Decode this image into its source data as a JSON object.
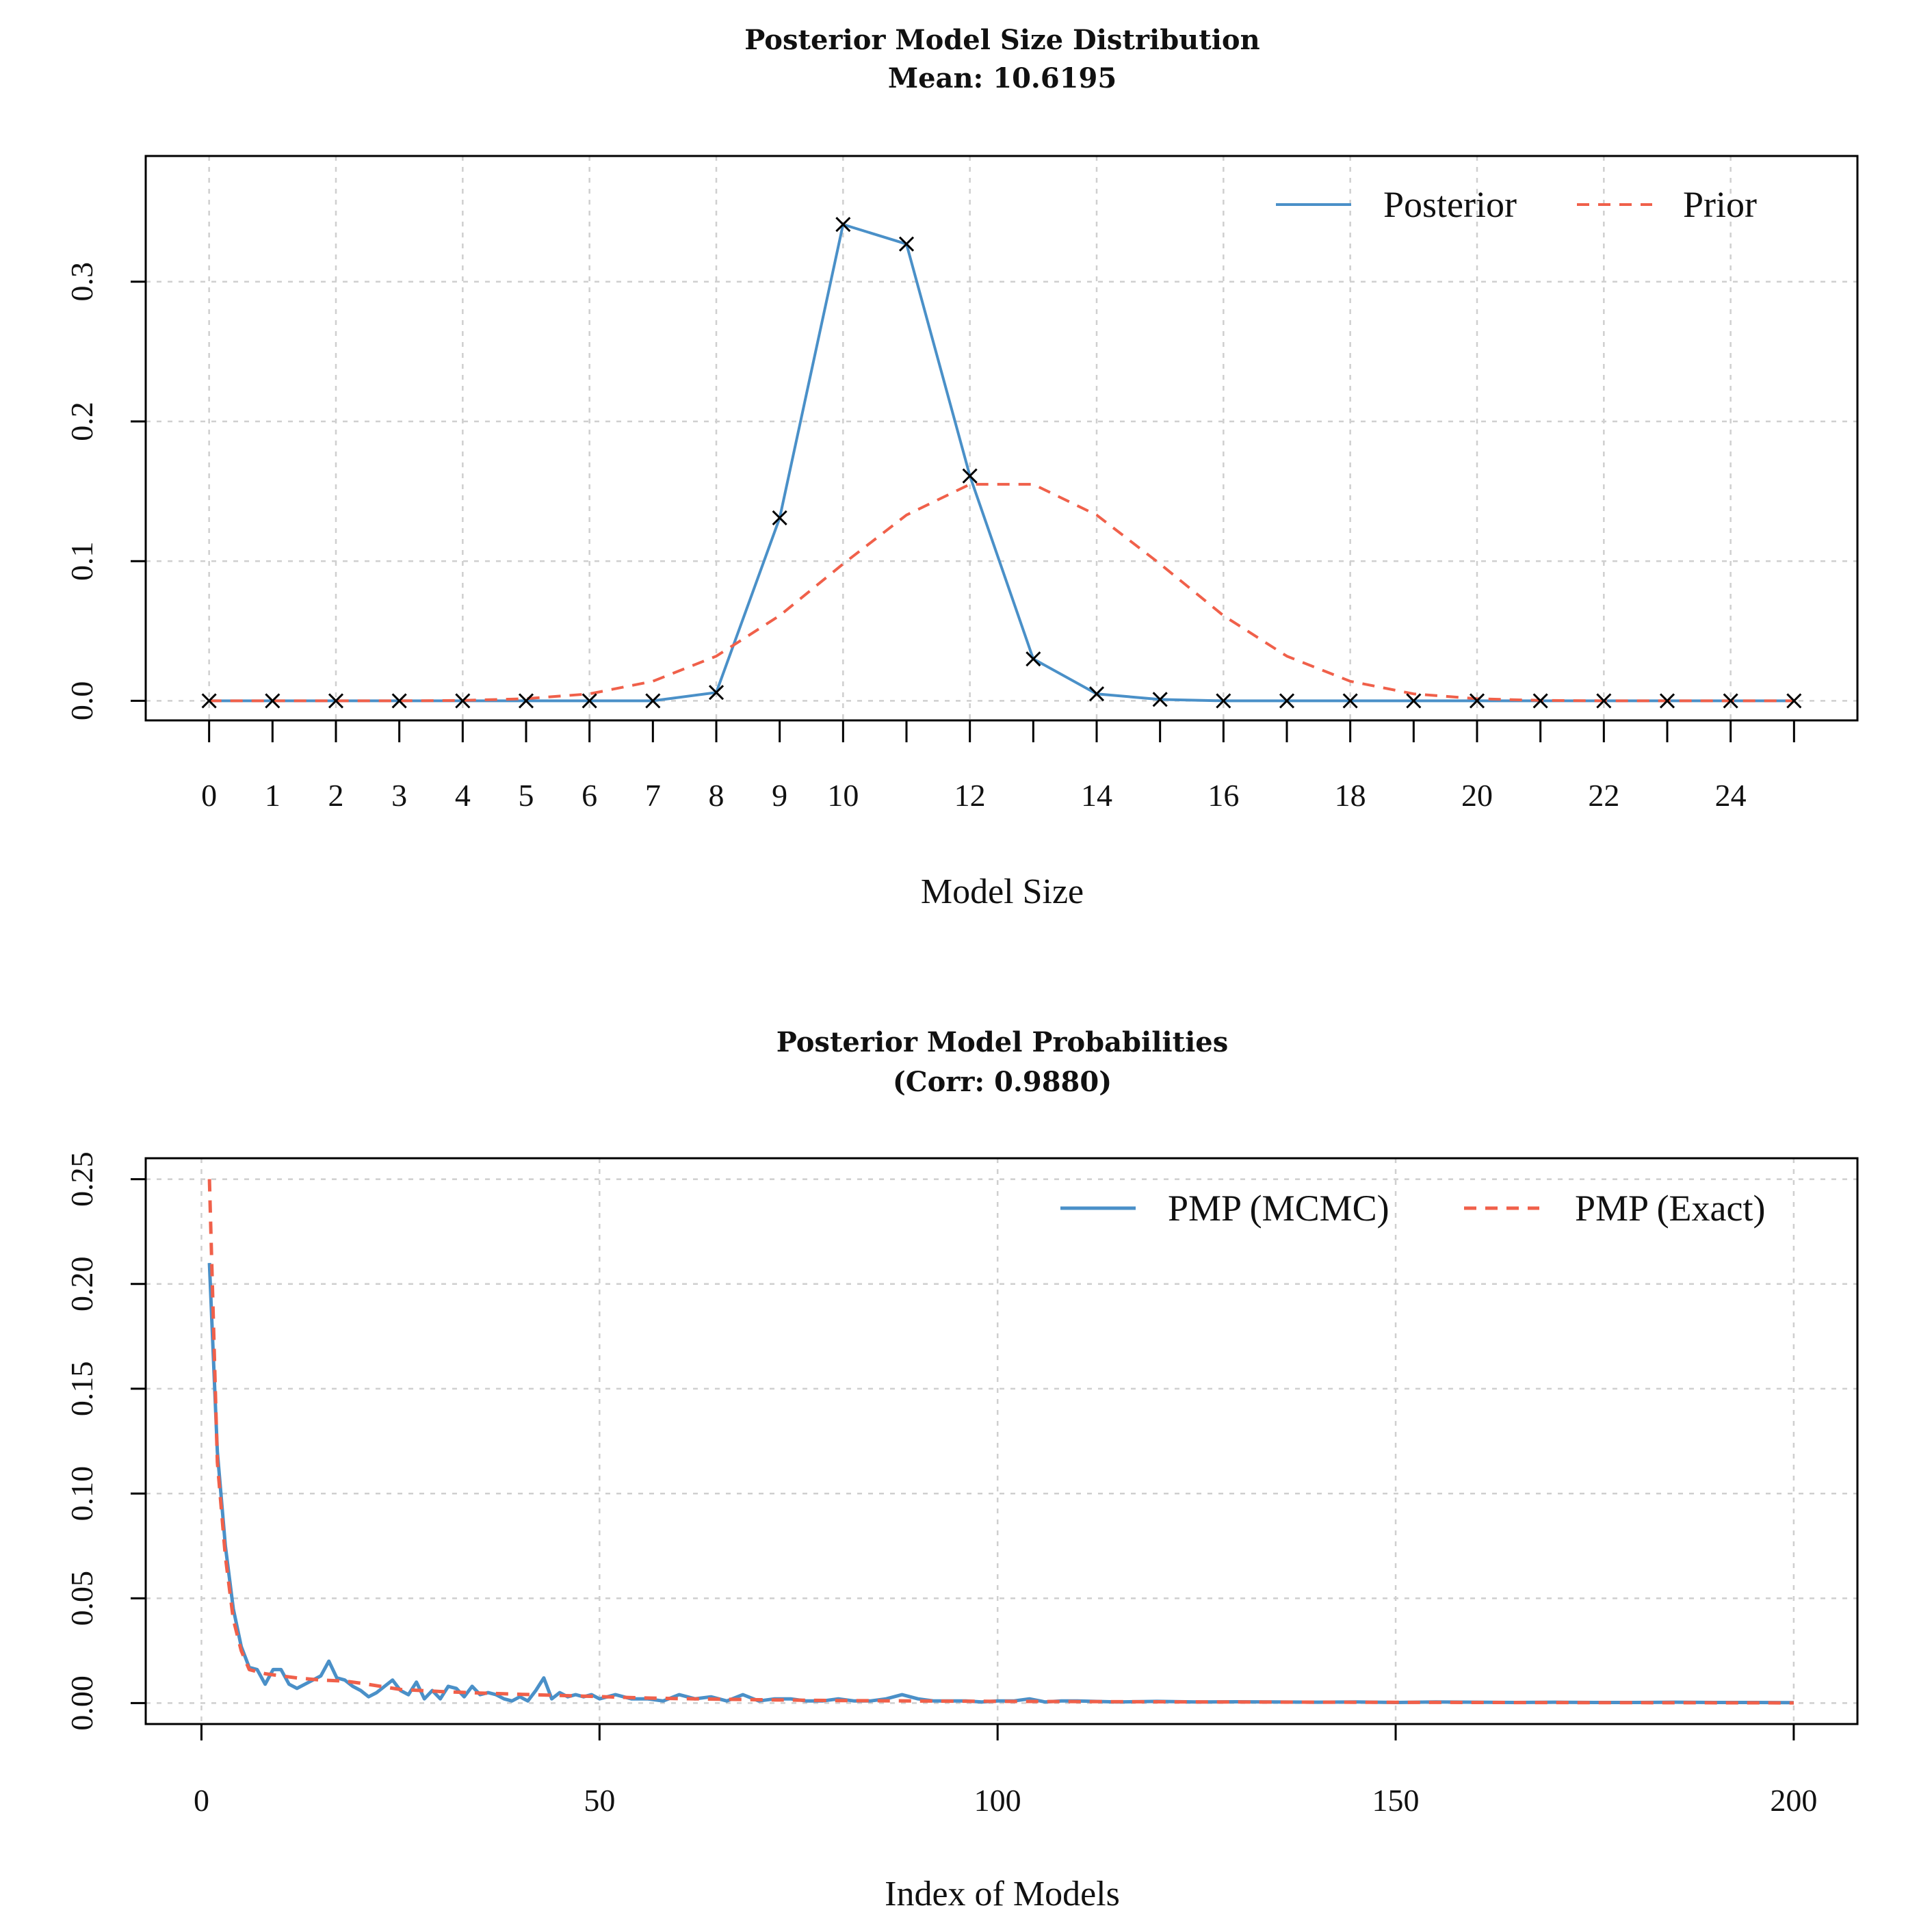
{
  "chart_data": [
    {
      "type": "line",
      "title": "Posterior Model Size Distribution",
      "subtitle": "Mean: 10.6195",
      "xlabel": "Model Size",
      "ylabel": "",
      "xlim": [
        -1,
        26
      ],
      "ylim": [
        -0.014,
        0.39
      ],
      "yticks": [
        0.0,
        0.1,
        0.2,
        0.3
      ],
      "ytick_labels": [
        "0.0",
        "0.1",
        "0.2",
        "0.3"
      ],
      "xticks": [
        0,
        1,
        2,
        3,
        4,
        5,
        6,
        7,
        8,
        9,
        10,
        11,
        12,
        13,
        14,
        15,
        16,
        17,
        18,
        19,
        20,
        21,
        22,
        23,
        24,
        25
      ],
      "xtick_labels": [
        "0",
        "1",
        "2",
        "3",
        "4",
        "5",
        "6",
        "7",
        "8",
        "9",
        "10",
        "12",
        "14",
        "16",
        "18",
        "20",
        "22",
        "24"
      ],
      "xtick_label_positions": [
        0,
        1,
        2,
        3,
        4,
        5,
        6,
        7,
        8,
        9,
        10,
        12,
        14,
        16,
        18,
        20,
        22,
        24
      ],
      "grid": true,
      "legend_position": "top-right",
      "series": [
        {
          "name": "Posterior",
          "color": "#4a90c8",
          "style": "solid",
          "markers": "x",
          "x": [
            0,
            1,
            2,
            3,
            4,
            5,
            6,
            7,
            8,
            9,
            10,
            11,
            12,
            13,
            14,
            15,
            16,
            17,
            18,
            19,
            20,
            21,
            22,
            23,
            24,
            25
          ],
          "values": [
            0,
            0,
            0,
            0,
            0,
            0,
            0,
            0,
            0.006,
            0.131,
            0.341,
            0.327,
            0.161,
            0.03,
            0.005,
            0.001,
            0,
            0,
            0,
            0,
            0,
            0,
            0,
            0,
            0,
            0
          ]
        },
        {
          "name": "Prior",
          "color": "#f0604a",
          "style": "dashed",
          "x": [
            0,
            1,
            2,
            3,
            4,
            5,
            6,
            7,
            8,
            9,
            10,
            11,
            12,
            13,
            14,
            15,
            16,
            17,
            18,
            19,
            20,
            21,
            22,
            23,
            24,
            25
          ],
          "values": [
            0,
            0,
            0,
            0,
            0.0003,
            0.0015,
            0.005,
            0.014,
            0.032,
            0.061,
            0.098,
            0.133,
            0.155,
            0.155,
            0.133,
            0.098,
            0.061,
            0.032,
            0.014,
            0.005,
            0.0015,
            0.0003,
            0,
            0,
            0,
            0
          ]
        }
      ]
    },
    {
      "type": "line",
      "title": "Posterior Model Probabilities",
      "subtitle": "(Corr: 0.9880)",
      "xlabel": "Index of Models",
      "ylabel": "",
      "xlim": [
        -7,
        208
      ],
      "ylim": [
        -0.01,
        0.26
      ],
      "yticks": [
        0.0,
        0.05,
        0.1,
        0.15,
        0.2,
        0.25
      ],
      "ytick_labels": [
        "0.00",
        "0.05",
        "0.10",
        "0.15",
        "0.20",
        "0.25"
      ],
      "xticks": [
        0,
        50,
        100,
        150,
        200
      ],
      "xtick_labels": [
        "0",
        "50",
        "100",
        "150",
        "200"
      ],
      "grid": true,
      "legend_position": "top-right",
      "series": [
        {
          "name": "PMP (MCMC)",
          "color": "#4a90c8",
          "style": "solid",
          "x": [
            1,
            2,
            3,
            4,
            5,
            6,
            7,
            8,
            9,
            10,
            11,
            12,
            13,
            14,
            15,
            16,
            17,
            18,
            19,
            20,
            21,
            22,
            23,
            24,
            25,
            26,
            27,
            28,
            29,
            30,
            31,
            32,
            33,
            34,
            35,
            36,
            37,
            38,
            39,
            40,
            41,
            42,
            43,
            44,
            45,
            46,
            47,
            48,
            49,
            50,
            52,
            54,
            56,
            58,
            60,
            62,
            64,
            66,
            68,
            70,
            72,
            74,
            76,
            78,
            80,
            82,
            84,
            86,
            88,
            90,
            92,
            94,
            96,
            98,
            100,
            102,
            104,
            106,
            108,
            110,
            115,
            120,
            125,
            130,
            135,
            140,
            145,
            150,
            155,
            160,
            165,
            170,
            175,
            180,
            185,
            190,
            195,
            200
          ],
          "values": [
            0.21,
            0.12,
            0.075,
            0.045,
            0.027,
            0.017,
            0.016,
            0.009,
            0.016,
            0.016,
            0.009,
            0.007,
            0.009,
            0.011,
            0.013,
            0.02,
            0.012,
            0.011,
            0.008,
            0.006,
            0.003,
            0.005,
            0.008,
            0.011,
            0.006,
            0.004,
            0.01,
            0.002,
            0.006,
            0.002,
            0.008,
            0.007,
            0.003,
            0.008,
            0.004,
            0.005,
            0.004,
            0.002,
            0.001,
            0.003,
            0.001,
            0.006,
            0.012,
            0.002,
            0.005,
            0.003,
            0.004,
            0.003,
            0.004,
            0.002,
            0.004,
            0.002,
            0.002,
            0.001,
            0.004,
            0.002,
            0.003,
            0.001,
            0.004,
            0.001,
            0.002,
            0.002,
            0.001,
            0.001,
            0.002,
            0.001,
            0.001,
            0.002,
            0.004,
            0.002,
            0.001,
            0.001,
            0.001,
            0.0005,
            0.001,
            0.001,
            0.002,
            0.0005,
            0.001,
            0.001,
            0.0005,
            0.0008,
            0.0005,
            0.0006,
            0.0005,
            0.0004,
            0.0005,
            0.0003,
            0.0005,
            0.0004,
            0.0003,
            0.0004,
            0.0003,
            0.0003,
            0.0004,
            0.0003,
            0.0003,
            0.0002
          ]
        },
        {
          "name": "PMP (Exact)",
          "color": "#f0604a",
          "style": "dashed",
          "x": [
            1,
            2,
            3,
            4,
            5,
            6,
            8,
            10,
            12,
            15,
            18,
            20,
            25,
            30,
            35,
            40,
            45,
            50,
            55,
            60,
            70,
            80,
            90,
            100,
            120,
            140,
            160,
            180,
            200
          ],
          "values": [
            0.25,
            0.115,
            0.07,
            0.04,
            0.025,
            0.016,
            0.014,
            0.013,
            0.012,
            0.011,
            0.0105,
            0.0095,
            0.0065,
            0.0055,
            0.0048,
            0.0042,
            0.0036,
            0.0031,
            0.0025,
            0.0021,
            0.0016,
            0.0012,
            0.001,
            0.0008,
            0.0006,
            0.0004,
            0.0003,
            0.0002,
            0.0001
          ]
        }
      ]
    }
  ]
}
